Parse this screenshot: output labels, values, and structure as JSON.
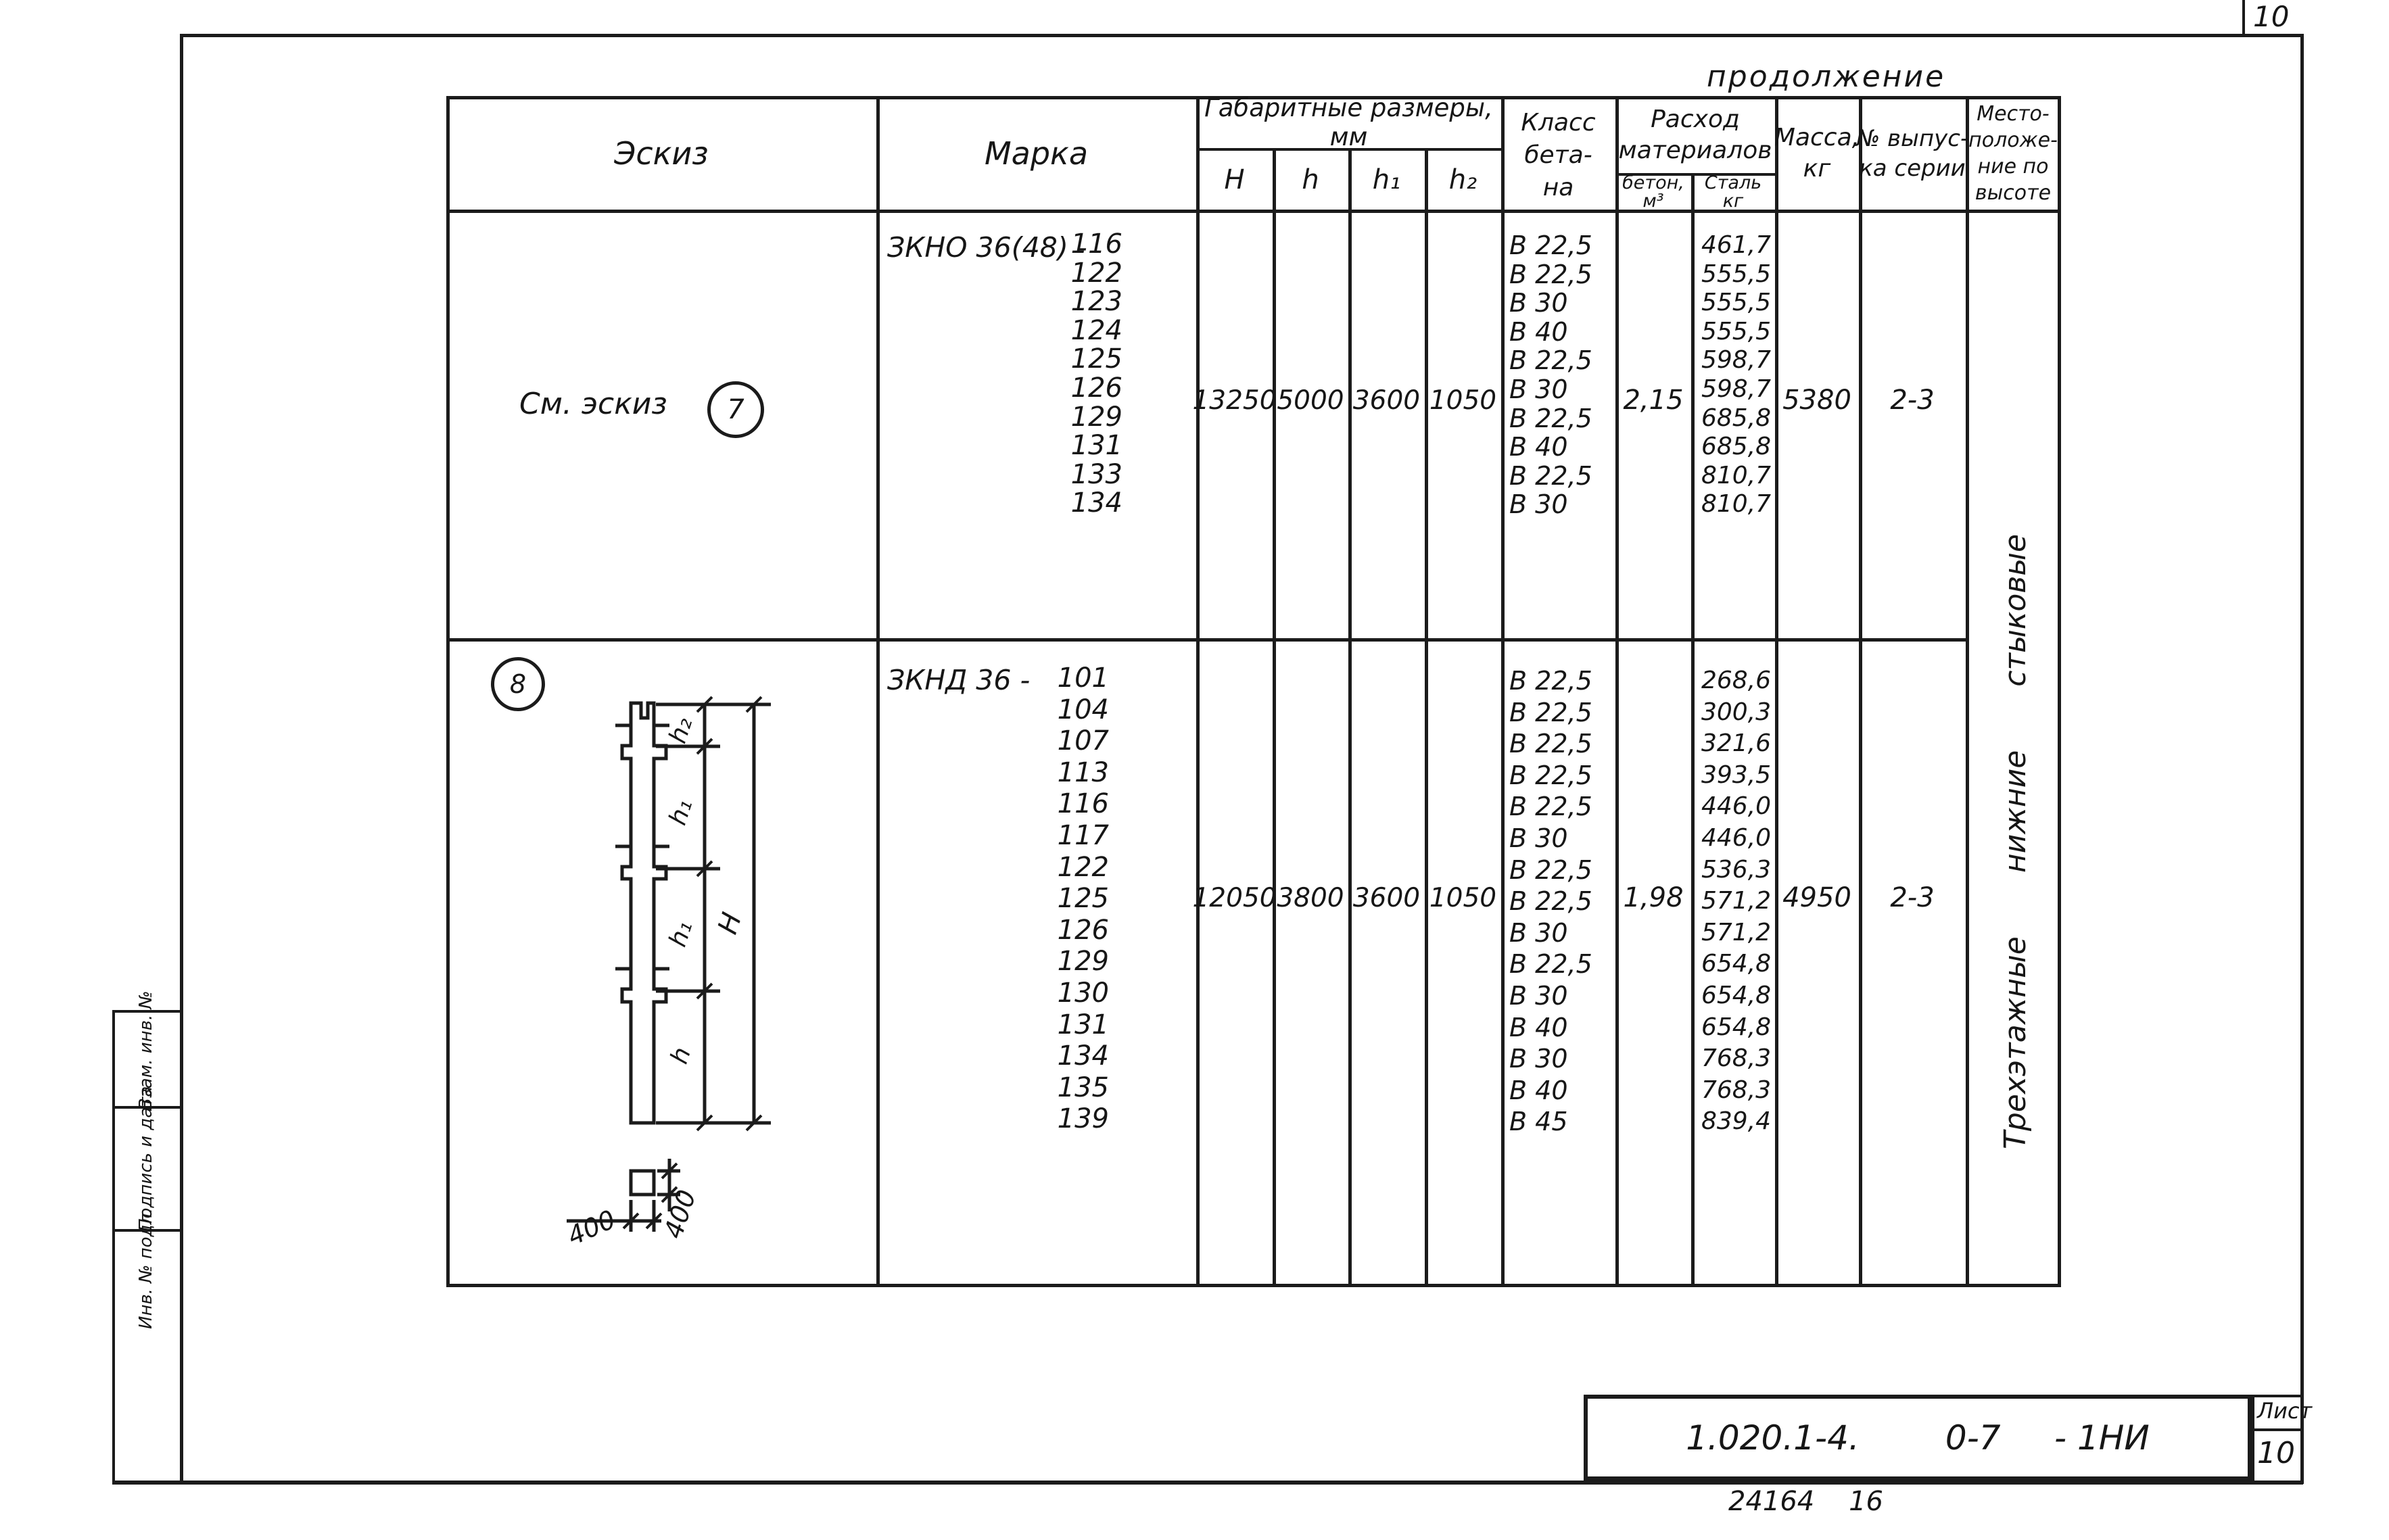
{
  "page": {
    "page_number": "10",
    "continuation": "продолжение",
    "footer_code": "24164    16"
  },
  "table": {
    "headers": {
      "sketch": "Эскиз",
      "mark": "Марка",
      "dims_group": "Габаритные размеры, мм",
      "dim_cols": [
        "H",
        "h",
        "h₁",
        "h₂"
      ],
      "concrete_class_lines": [
        "Класс",
        "бета-",
        "на"
      ],
      "materials_lines": [
        "Расход",
        "материалов"
      ],
      "concrete_sub_lines": [
        "бетон,",
        "м³"
      ],
      "steel_sub_lines": [
        "Сталь",
        "кг"
      ],
      "mass_lines": [
        "Масса,",
        "кг"
      ],
      "series_lines": [
        "№ выпус-",
        "ка серии"
      ],
      "position_lines": [
        "Место-",
        "положе-",
        "ние по",
        "высоте"
      ]
    },
    "row_groups": [
      {
        "sketch_note": "См. эскиз",
        "sketch_ref": "7",
        "mark_prefix": "ЗКНО 36(48) -",
        "mark_numbers": [
          "116",
          "122",
          "123",
          "124",
          "125",
          "126",
          "129",
          "131",
          "133",
          "134"
        ],
        "H": "13250",
        "h": "5000",
        "h1": "3600",
        "h2": "1050",
        "concrete_classes": [
          "В 22,5",
          "В 22,5",
          "В 30",
          "В 40",
          "В 22,5",
          "В 30",
          "В 22,5",
          "В 40",
          "В 22,5",
          "В 30"
        ],
        "concrete_volume": "2,15",
        "steel": [
          "461,7",
          "555,5",
          "555,5",
          "555,5",
          "598,7",
          "598,7",
          "685,8",
          "685,8",
          "810,7",
          "810,7"
        ],
        "mass": "5380",
        "series": "2-3"
      },
      {
        "sketch_ref": "8",
        "mark_prefix": "ЗКНД 36 -",
        "mark_numbers": [
          "101",
          "104",
          "107",
          "113",
          "116",
          "117",
          "122",
          "125",
          "126",
          "129",
          "130",
          "131",
          "134",
          "135",
          "139"
        ],
        "H": "12050",
        "h": "3800",
        "h1": "3600",
        "h2": "1050",
        "concrete_classes": [
          "В 22,5",
          "В 22,5",
          "В 22,5",
          "В 22,5",
          "В 22,5",
          "В 30",
          "В 22,5",
          "В 22,5",
          "В 30",
          "В 22,5",
          "В 30",
          "В 40",
          "В 30",
          "В 40",
          "В 45"
        ],
        "concrete_volume": "1,98",
        "steel": [
          "268,6",
          "300,3",
          "321,6",
          "393,5",
          "446,0",
          "446,0",
          "536,3",
          "571,2",
          "571,2",
          "654,8",
          "654,8",
          "654,8",
          "768,3",
          "768,3",
          "839,4"
        ],
        "mass": "4950",
        "series": "2-3"
      }
    ],
    "position_note": "Трехэтажные нижние стыковые"
  },
  "sketch_labels": {
    "seg_h2": "h₂",
    "seg_h1_upper": "h₁",
    "seg_h1_lower": "h₁",
    "seg_h": "h",
    "total_H": "H",
    "section_width": "400",
    "section_depth": "400"
  },
  "margin_stamp": [
    "Взам. инв. №",
    "Подпись и дата",
    "Инв. № подл."
  ],
  "title_block": {
    "designation": "1.020.1-4.        0-7     - 1НИ",
    "sheet_label": "Лист",
    "sheet_number": "10"
  }
}
